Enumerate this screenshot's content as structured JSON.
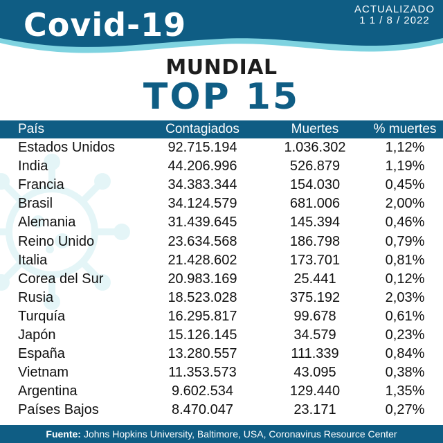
{
  "header": {
    "title": "Covid-19",
    "updated_label": "ACTUALIZADO",
    "updated_date": "1 1 / 8 / 2022"
  },
  "subtitle": "MUNDIAL",
  "heading": "TOP 15",
  "table": {
    "columns": [
      "País",
      "Contagiados",
      "Muertes",
      "% muertes"
    ],
    "rows": [
      [
        "Estados Unidos",
        "92.715.194",
        "1.036.302",
        "1,12%"
      ],
      [
        "India",
        "44.206.996",
        "526.879",
        "1,19%"
      ],
      [
        "Francia",
        "34.383.344",
        "154.030",
        "0,45%"
      ],
      [
        "Brasil",
        "34.124.579",
        "681.006",
        "2,00%"
      ],
      [
        "Alemania",
        "31.439.645",
        "145.394",
        "0,46%"
      ],
      [
        "Reino Unido",
        "23.634.568",
        "186.798",
        "0,79%"
      ],
      [
        "Italia",
        "21.428.602",
        "173.701",
        "0,81%"
      ],
      [
        "Corea del Sur",
        "20.983.169",
        "25.441",
        "0,12%"
      ],
      [
        "Rusia",
        "18.523.028",
        "375.192",
        "2,03%"
      ],
      [
        "Turquía",
        "16.295.817",
        "99.678",
        "0,61%"
      ],
      [
        "Japón",
        "15.126.145",
        "34.579",
        "0,23%"
      ],
      [
        "España",
        "13.280.557",
        "111.339",
        "0,84%"
      ],
      [
        "Vietnam",
        "11.353.573",
        "43.095",
        "0,38%"
      ],
      [
        "Argentina",
        "9.602.534",
        "129.440",
        "1,35%"
      ],
      [
        "Países Bajos",
        "8.470.047",
        "23.171",
        "0,27%"
      ]
    ]
  },
  "footer": {
    "label": "Fuente:",
    "text": "Johns Hopkins University, Baltimore, USA, Coronavirus Resource Center"
  },
  "icons": {
    "watermark": "virus-icon"
  },
  "colors": {
    "primary": "#0f5d84",
    "wave": "#7fd3e0",
    "watermark": "#cfeef2"
  }
}
